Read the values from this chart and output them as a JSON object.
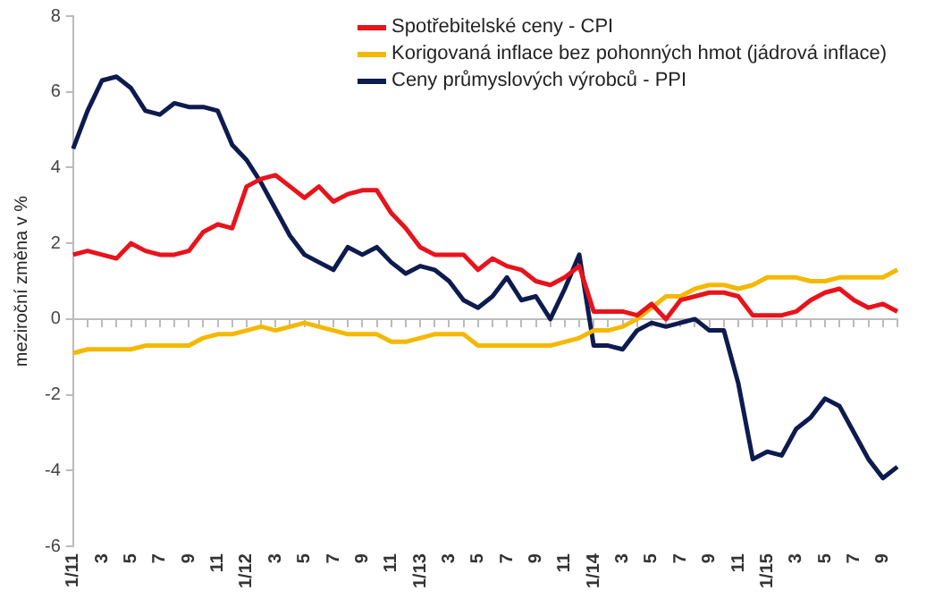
{
  "chart_data": {
    "type": "line",
    "ylabel": "meziroční změna v %",
    "categories": [
      "1/11",
      null,
      "3",
      null,
      "5",
      null,
      "7",
      null,
      "9",
      null,
      "11",
      null,
      "1/12",
      null,
      "3",
      null,
      "5",
      null,
      "7",
      null,
      "9",
      null,
      "11",
      null,
      "1/13",
      null,
      "3",
      null,
      "5",
      null,
      "7",
      null,
      "9",
      null,
      "11",
      null,
      "1/14",
      null,
      "3",
      null,
      "5",
      null,
      "7",
      null,
      "9",
      null,
      "11",
      null,
      "1/15",
      null,
      "3",
      null,
      "5",
      null,
      "7",
      null,
      "9",
      null
    ],
    "series": [
      {
        "name": "Spotřebitelské ceny - CPI",
        "color": "#e8131b",
        "values": [
          1.7,
          1.8,
          1.7,
          1.6,
          2.0,
          1.8,
          1.7,
          1.7,
          1.8,
          2.3,
          2.5,
          2.4,
          3.5,
          3.7,
          3.8,
          3.5,
          3.2,
          3.5,
          3.1,
          3.3,
          3.4,
          3.4,
          2.8,
          2.4,
          1.9,
          1.7,
          1.7,
          1.7,
          1.3,
          1.6,
          1.4,
          1.3,
          1.0,
          0.9,
          1.1,
          1.4,
          0.2,
          0.2,
          0.2,
          0.1,
          0.4,
          0.0,
          0.5,
          0.6,
          0.7,
          0.7,
          0.6,
          0.1,
          0.1,
          0.1,
          0.2,
          0.5,
          0.7,
          0.8,
          0.5,
          0.3,
          0.4,
          0.2
        ]
      },
      {
        "name": "Korigovaná inflace bez pohonných hmot (jádrová inflace)",
        "color": "#f5b800",
        "values": [
          -0.9,
          -0.8,
          -0.8,
          -0.8,
          -0.8,
          -0.7,
          -0.7,
          -0.7,
          -0.7,
          -0.5,
          -0.4,
          -0.4,
          -0.3,
          -0.2,
          -0.3,
          -0.2,
          -0.1,
          -0.2,
          -0.3,
          -0.4,
          -0.4,
          -0.4,
          -0.6,
          -0.6,
          -0.5,
          -0.4,
          -0.4,
          -0.4,
          -0.7,
          -0.7,
          -0.7,
          -0.7,
          -0.7,
          -0.7,
          -0.6,
          -0.5,
          -0.3,
          -0.3,
          -0.2,
          0.0,
          0.3,
          0.6,
          0.6,
          0.8,
          0.9,
          0.9,
          0.8,
          0.9,
          1.1,
          1.1,
          1.1,
          1.0,
          1.0,
          1.1,
          1.1,
          1.1,
          1.1,
          1.3
        ]
      },
      {
        "name": "Ceny průmyslových výrobců - PPI",
        "color": "#0d1b4f",
        "values": [
          4.5,
          5.5,
          6.3,
          6.4,
          6.1,
          5.5,
          5.4,
          5.7,
          5.6,
          5.6,
          5.5,
          4.6,
          4.2,
          3.6,
          2.9,
          2.2,
          1.7,
          1.5,
          1.3,
          1.9,
          1.7,
          1.9,
          1.5,
          1.2,
          1.4,
          1.3,
          1.0,
          0.5,
          0.3,
          0.6,
          1.1,
          0.5,
          0.6,
          0.0,
          0.8,
          1.7,
          -0.7,
          -0.7,
          -0.8,
          -0.3,
          -0.1,
          -0.2,
          -0.1,
          0.0,
          -0.3,
          -0.3,
          -1.7,
          -3.7,
          -3.5,
          -3.6,
          -2.9,
          -2.6,
          -2.1,
          -2.3,
          -3.0,
          -3.7,
          -4.2,
          -3.9
        ]
      }
    ],
    "ylim": [
      -6,
      8
    ],
    "yticks": [
      -6,
      -4,
      -2,
      0,
      2,
      4,
      6,
      8
    ],
    "grid": false,
    "ref_lines": [
      {
        "axis": "y",
        "value": 0,
        "color": "#bbbbbb"
      }
    ],
    "legend": "top right",
    "marker": "none",
    "line_style": "solid"
  }
}
